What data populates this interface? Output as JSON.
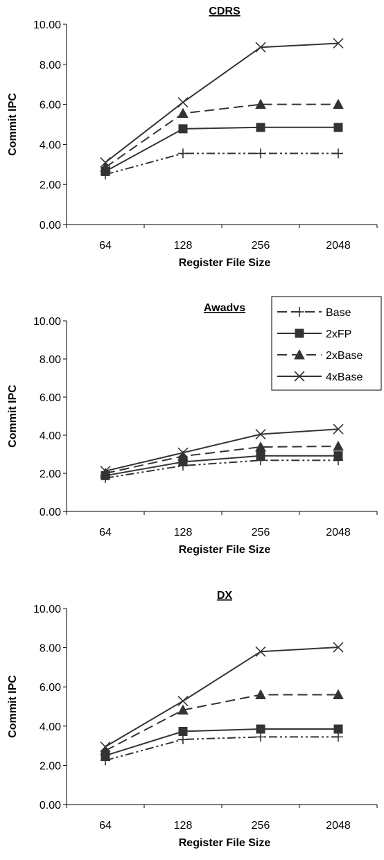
{
  "chart_data": [
    {
      "type": "line",
      "title": "CDRS",
      "xlabel": "Register File Size",
      "ylabel": "Commit IPC",
      "categories": [
        "64",
        "128",
        "256",
        "2048"
      ],
      "yticks": [
        "0.00",
        "2.00",
        "4.00",
        "6.00",
        "8.00",
        "10.00"
      ],
      "ylim": [
        0,
        10
      ],
      "series": [
        {
          "name": "Base",
          "values": [
            2.5,
            3.55,
            3.55,
            3.55
          ]
        },
        {
          "name": "2xFP",
          "values": [
            2.65,
            4.78,
            4.85,
            4.85
          ]
        },
        {
          "name": "2xBase",
          "values": [
            2.85,
            5.55,
            6.0,
            6.0
          ]
        },
        {
          "name": "4xBase",
          "values": [
            3.1,
            6.1,
            8.85,
            9.05
          ]
        }
      ]
    },
    {
      "type": "line",
      "title": "Awadvs",
      "xlabel": "Register File Size",
      "ylabel": "Commit IPC",
      "categories": [
        "64",
        "128",
        "256",
        "2048"
      ],
      "yticks": [
        "0.00",
        "2.00",
        "4.00",
        "6.00",
        "8.00",
        "10.00"
      ],
      "ylim": [
        0,
        10
      ],
      "series": [
        {
          "name": "Base",
          "values": [
            1.75,
            2.4,
            2.68,
            2.68
          ]
        },
        {
          "name": "2xFP",
          "values": [
            1.88,
            2.6,
            2.92,
            2.92
          ]
        },
        {
          "name": "2xBase",
          "values": [
            2.0,
            2.9,
            3.38,
            3.42
          ]
        },
        {
          "name": "4xBase",
          "values": [
            2.12,
            3.08,
            4.05,
            4.32
          ]
        }
      ],
      "legend": [
        "Base",
        "2xFP",
        "2xBase",
        "4xBase"
      ],
      "legend_position": "top-right"
    },
    {
      "type": "line",
      "title": "DX",
      "xlabel": "Register File Size",
      "ylabel": "Commit IPC",
      "categories": [
        "64",
        "128",
        "256",
        "2048"
      ],
      "yticks": [
        "0.00",
        "2.00",
        "4.00",
        "6.00",
        "8.00",
        "10.00"
      ],
      "ylim": [
        0,
        10
      ],
      "series": [
        {
          "name": "Base",
          "values": [
            2.25,
            3.32,
            3.45,
            3.45
          ]
        },
        {
          "name": "2xFP",
          "values": [
            2.5,
            3.73,
            3.85,
            3.85
          ]
        },
        {
          "name": "2xBase",
          "values": [
            2.75,
            4.82,
            5.6,
            5.6
          ]
        },
        {
          "name": "4xBase",
          "values": [
            2.95,
            5.28,
            7.8,
            8.02
          ]
        }
      ]
    }
  ],
  "style": {
    "line_color": "#333333",
    "text_color": "#000000",
    "markers": {
      "Base": "plus",
      "2xFP": "square",
      "2xBase": "triangle",
      "4xBase": "cross"
    },
    "dashes": {
      "Base": "dash-dot-dot",
      "2xFP": "solid",
      "2xBase": "dashed",
      "4xBase": "solid"
    }
  }
}
